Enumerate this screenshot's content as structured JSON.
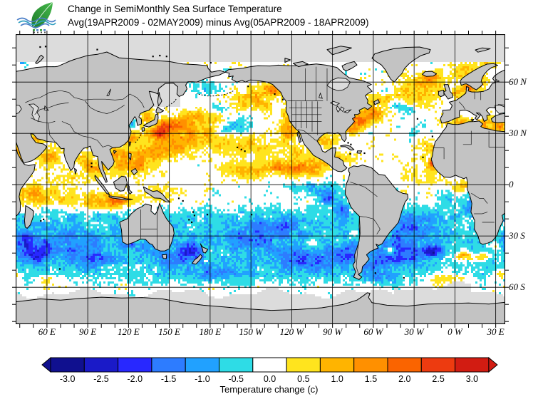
{
  "header": {
    "title_line1": "Change in SemiMonthly Sea Surface Temperature",
    "title_line2": "Avg(19APR2009 - 02MAY2009) minus Avg(05APR2009 - 18APR2009)",
    "logo": {
      "leaf_color": "#2E9E3A",
      "wave_color": "#4A7EC8"
    }
  },
  "map": {
    "land_color": "#C3C3C3",
    "coast_color": "#000000",
    "no_data_color": "#DCDCDC",
    "ocean_color": "#FFFFFF",
    "lon_tick_labels": [
      {
        "text": "60 E",
        "lon": 60
      },
      {
        "text": "90 E",
        "lon": 90
      },
      {
        "text": "120 E",
        "lon": 120
      },
      {
        "text": "150 E",
        "lon": 150
      },
      {
        "text": "180 E",
        "lon": 180
      },
      {
        "text": "150 W",
        "lon": 210
      },
      {
        "text": "120 W",
        "lon": 240
      },
      {
        "text": "90 W",
        "lon": 270
      },
      {
        "text": "60 W",
        "lon": 300
      },
      {
        "text": "30 W",
        "lon": 330
      },
      {
        "text": "0 W",
        "lon": 360
      },
      {
        "text": "30 E",
        "lon": 390
      }
    ],
    "lat_tick_labels": [
      {
        "text": "60 N",
        "lat": 60
      },
      {
        "text": "30 N",
        "lat": 30
      },
      {
        "text": "0",
        "lat": 0
      },
      {
        "text": "30 S",
        "lat": -30
      },
      {
        "text": "60 S",
        "lat": -60
      }
    ]
  },
  "chart_data": {
    "type": "heatmap",
    "title": "Change in SemiMonthly Sea Surface Temperature",
    "subtitle": "Avg(19APR2009 - 02MAY2009) minus Avg(05APR2009 - 18APR2009)",
    "units": "degrees C",
    "scale_min": -3.0,
    "scale_max": 3.0,
    "scale_step": 0.5,
    "colorbar": {
      "caption": "Temperature change  (c)",
      "tick_labels": [
        "-3.0",
        "-2.5",
        "-2.0",
        "-1.5",
        "-1.0",
        "-0.5",
        "0.0",
        "0.5",
        "1.0",
        "1.5",
        "2.0",
        "2.5",
        "3.0"
      ],
      "segment_colors": [
        "#10108F",
        "#1A1AC8",
        "#2828FF",
        "#2D7CFF",
        "#21A1FF",
        "#2EDCE6",
        "#FFFFFF",
        "#FFE41E",
        "#FFB400",
        "#FF9000",
        "#FA6400",
        "#ED3B10",
        "#D21C12"
      ],
      "left_arrow_color": "#10108F",
      "right_arrow_color": "#D21C12"
    },
    "anomaly_fields": [
      "lon",
      "lat",
      "rlon_deg",
      "rlat_deg",
      "delta_c"
    ],
    "anomaly_regions": [
      [
        165,
        31,
        26,
        8,
        1.0
      ],
      [
        150,
        34,
        10,
        4,
        1.4
      ],
      [
        143,
        30,
        6,
        3,
        1.8
      ],
      [
        178,
        39,
        16,
        5,
        0.8
      ],
      [
        205,
        23,
        22,
        7,
        0.7
      ],
      [
        213,
        50,
        16,
        6,
        0.95
      ],
      [
        227,
        56,
        7,
        4,
        1.3
      ],
      [
        152,
        22,
        14,
        6,
        0.9
      ],
      [
        136,
        18,
        11,
        6,
        1.0
      ],
      [
        127,
        11,
        8,
        6,
        1.1
      ],
      [
        118,
        18,
        7,
        5,
        0.9
      ],
      [
        124,
        28,
        6,
        4,
        1.1
      ],
      [
        134,
        40,
        5,
        4,
        1.0
      ],
      [
        123,
        35,
        4,
        3,
        -0.7
      ],
      [
        197,
        34,
        12,
        5,
        -1.2
      ],
      [
        186,
        44,
        8,
        3,
        -0.6
      ],
      [
        238,
        31,
        6,
        6,
        1.2
      ],
      [
        237,
        42,
        5,
        4,
        0.8
      ],
      [
        246,
        19,
        7,
        4,
        0.8
      ],
      [
        245,
        9,
        14,
        4,
        1.3
      ],
      [
        232,
        11,
        12,
        4,
        0.8
      ],
      [
        259,
        12,
        8,
        4,
        1.0
      ],
      [
        208,
        8,
        20,
        4,
        0.8
      ],
      [
        252,
        -2,
        16,
        3,
        -0.8
      ],
      [
        266,
        -7,
        9,
        5,
        -1.5
      ],
      [
        277,
        -15,
        6,
        6,
        -1.0
      ],
      [
        210,
        -32,
        35,
        9,
        -0.75
      ],
      [
        250,
        -45,
        22,
        7,
        -1.2
      ],
      [
        230,
        -24,
        20,
        6,
        -0.65
      ],
      [
        166,
        -39,
        9,
        5,
        -1.7
      ],
      [
        150,
        -45,
        12,
        5,
        -0.9
      ],
      [
        187,
        -52,
        18,
        5,
        -0.85
      ],
      [
        280,
        -40,
        12,
        6,
        -1.0
      ],
      [
        255,
        -34,
        5,
        3,
        0.9
      ],
      [
        178,
        57,
        12,
        4,
        -0.45
      ],
      [
        62,
        17,
        8,
        6,
        1.0
      ],
      [
        39.5,
        19,
        3,
        6,
        1.5
      ],
      [
        52,
        27,
        4,
        2.5,
        1.3
      ],
      [
        88,
        13,
        8,
        6,
        0.85
      ],
      [
        97,
        8,
        6,
        4,
        1.0
      ],
      [
        73,
        3,
        18,
        6,
        0.45
      ],
      [
        83,
        9,
        4,
        3,
        -0.7
      ],
      [
        60,
        -8,
        25,
        6,
        0.65
      ],
      [
        100,
        -10,
        14,
        5,
        0.95
      ],
      [
        112,
        -9,
        10,
        4,
        1.1
      ],
      [
        48,
        -5,
        8,
        6,
        0.6
      ],
      [
        75,
        -34,
        32,
        9,
        -0.85
      ],
      [
        52,
        -41,
        10,
        5,
        -1.6
      ],
      [
        95,
        -44,
        12,
        4,
        -1.2
      ],
      [
        128,
        -36,
        12,
        5,
        -0.75
      ],
      [
        42,
        -33,
        8,
        5,
        -1.2
      ],
      [
        113,
        13,
        8,
        7,
        0.75
      ],
      [
        108,
        20,
        6,
        4,
        0.9
      ],
      [
        140,
        -5,
        12,
        5,
        0.6
      ],
      [
        289,
        37,
        10,
        3.5,
        1.7
      ],
      [
        283,
        33,
        5,
        3,
        1.2
      ],
      [
        299,
        42,
        9,
        4,
        1.0
      ],
      [
        318,
        50,
        20,
        8,
        0.85
      ],
      [
        338,
        57,
        12,
        6,
        0.95
      ],
      [
        342,
        63,
        6,
        3,
        1.2
      ],
      [
        368,
        66,
        10,
        4,
        1.0
      ],
      [
        371,
        57,
        5,
        3,
        1.8
      ],
      [
        378,
        61,
        5,
        4,
        1.4
      ],
      [
        362,
        53,
        4,
        3,
        1.0
      ],
      [
        318,
        47,
        6,
        4,
        -1.2
      ],
      [
        327,
        44,
        7,
        3,
        -0.7
      ],
      [
        310,
        55,
        6,
        4,
        -0.6
      ],
      [
        330,
        30,
        16,
        8,
        -0.15
      ],
      [
        344,
        13,
        3.5,
        3,
        2.2
      ],
      [
        340,
        22,
        8,
        5,
        0.7
      ],
      [
        353,
        37,
        5,
        3,
        0.9
      ],
      [
        363,
        36,
        7,
        3,
        1.0
      ],
      [
        384,
        35,
        9,
        4,
        1.2
      ],
      [
        393,
        34,
        4,
        3,
        1.4
      ],
      [
        265,
        25.5,
        7,
        3.5,
        1.0
      ],
      [
        276,
        15,
        10,
        4,
        0.55
      ],
      [
        337,
        6,
        14,
        5,
        0.45
      ],
      [
        364,
        -1,
        7,
        4,
        0.85
      ],
      [
        356,
        -8,
        8,
        5,
        -0.6
      ],
      [
        370,
        -12,
        6,
        6,
        -0.9
      ],
      [
        330,
        -27,
        22,
        9,
        -0.8
      ],
      [
        318,
        -40,
        18,
        7,
        -1.3
      ],
      [
        343,
        -39,
        8,
        4,
        -1.6
      ],
      [
        313,
        -38,
        4,
        2.5,
        1.4
      ],
      [
        366,
        -42,
        6,
        3,
        1.5
      ],
      [
        381,
        -42,
        6,
        3,
        1.2
      ],
      [
        390,
        -36,
        5,
        3,
        0.9
      ],
      [
        300,
        -48,
        8,
        4,
        -1.1
      ],
      [
        310,
        -55,
        12,
        4,
        -0.7
      ],
      [
        42,
        73,
        5,
        3,
        -0.8
      ],
      [
        385,
        73,
        8,
        3,
        0.9
      ],
      [
        60,
        -55,
        10,
        3,
        0.7
      ],
      [
        355,
        -55,
        15,
        4,
        0.8
      ],
      [
        395,
        -52,
        6,
        3,
        1.0
      ]
    ],
    "no_data_zones": [
      {
        "name": "arctic-ice",
        "lonMin": 37,
        "lonMax": 397,
        "latMin": 71.5,
        "latMax": 90
      },
      {
        "name": "sea-of-okhotsk",
        "lonMin": 136,
        "lonMax": 158,
        "latMin": 46,
        "latMax": 61
      },
      {
        "name": "antarctic-ice",
        "lonMin": 37,
        "lonMax": 397,
        "latMin": -90,
        "latMax": -63.5
      },
      {
        "name": "antarctic-weddell-ice",
        "lonMin": 316,
        "lonMax": 372,
        "latMin": -90,
        "latMax": -59.5
      }
    ]
  }
}
